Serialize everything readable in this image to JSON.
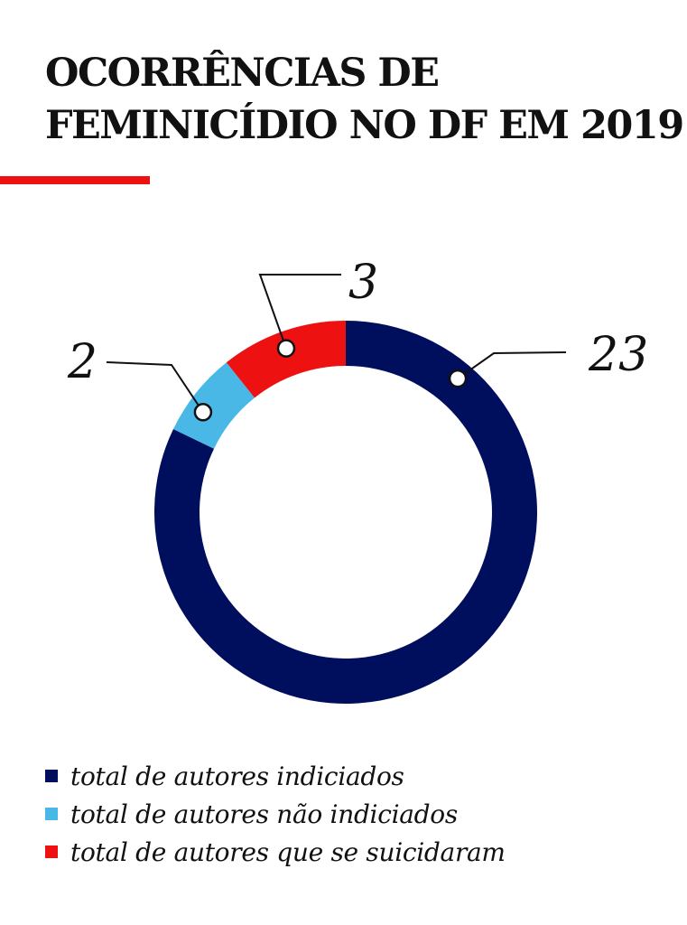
{
  "title_lines": [
    "OCORRÊNCIAS DE",
    "FEMINICÍDIO NO DF EM 2019"
  ],
  "colors": {
    "accent": "#ee1111",
    "dark_blue": "#000e5e",
    "light_blue": "#4ab8e6",
    "red": "#ee1111"
  },
  "chart_data": {
    "type": "pie",
    "variant": "donut",
    "title": "OCORRÊNCIAS DE FEMINICÍDIO NO DF EM 2019",
    "legend_position": "bottom-left",
    "slices": [
      {
        "label": "total de autores indiciados",
        "value": 23,
        "color": "#000e5e"
      },
      {
        "label": "total de autores não indiciados",
        "value": 2,
        "color": "#4ab8e6"
      },
      {
        "label": "total de autores que se suicidaram",
        "value": 3,
        "color": "#ee1111"
      }
    ]
  }
}
